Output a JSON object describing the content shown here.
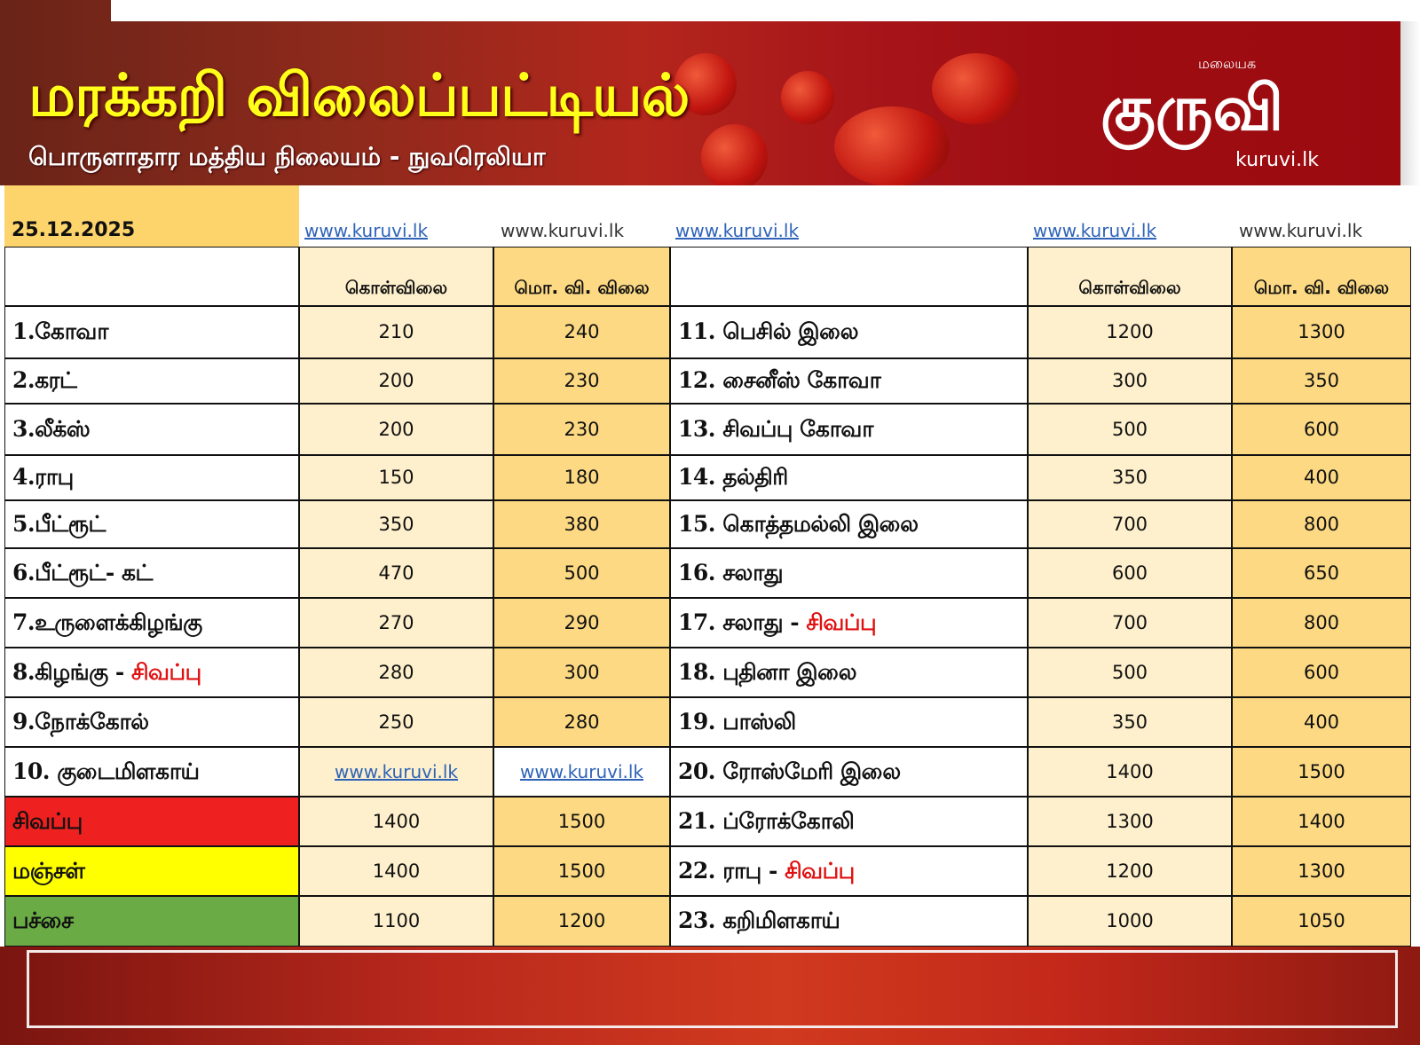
{
  "header": {
    "title": "மரக்கறி விலைப்பட்டியல்",
    "subtitle": "பொருளாதார மத்திய நிலையம் - நுவரெலியா",
    "logo": {
      "script_text": "குருவி",
      "small_text": "மலையக",
      "url": "kuruvi.lk"
    }
  },
  "table": {
    "date": "25.12.2025",
    "watermark": "www.kuruvi.lk",
    "col_wholesale": "கொள்விலை",
    "col_retail": "மொ. வி. விலை",
    "left_rows": [
      {
        "name": "1.கோவா",
        "wholesale": "210",
        "retail": "240"
      },
      {
        "name": "2.கரட்",
        "wholesale": "200",
        "retail": "230"
      },
      {
        "name": "3.லீக்ஸ்",
        "wholesale": "200",
        "retail": "230"
      },
      {
        "name": "4.ராபு",
        "wholesale": "150",
        "retail": "180"
      },
      {
        "name": "5.பீட்ரூட்",
        "wholesale": "350",
        "retail": "380"
      },
      {
        "name": "6.பீட்ரூட்- கட்",
        "wholesale": "470",
        "retail": "500"
      },
      {
        "name": "7.உருளைக்கிழங்கு",
        "wholesale": "270",
        "retail": "290"
      },
      {
        "name": "8.கிழங்கு - ",
        "name_red": "சிவப்பு",
        "wholesale": "280",
        "retail": "300"
      },
      {
        "name": "9.நோக்கோல்",
        "wholesale": "250",
        "retail": "280"
      },
      {
        "name": "10. குடைமிளகாய்",
        "wholesale": "www.kuruvi.lk",
        "retail": "www.kuruvi.lk"
      },
      {
        "name": "சிவப்பு",
        "wholesale": "1400",
        "retail": "1500",
        "color": "#ee2020"
      },
      {
        "name": "மஞ்சள்",
        "wholesale": "1400",
        "retail": "1500",
        "color": "#ffff00"
      },
      {
        "name": "பச்சை",
        "wholesale": "1100",
        "retail": "1200",
        "color": "#6aab46"
      }
    ],
    "right_rows": [
      {
        "name": "11. பெசில் இலை",
        "wholesale": "1200",
        "retail": "1300"
      },
      {
        "name": "12. சைனீஸ் கோவா",
        "wholesale": "300",
        "retail": "350"
      },
      {
        "name": "13. சிவப்பு கோவா",
        "wholesale": "500",
        "retail": "600"
      },
      {
        "name": "14. தல்திரி",
        "wholesale": "350",
        "retail": "400"
      },
      {
        "name": "15. கொத்தமல்லி இலை",
        "wholesale": "700",
        "retail": "800"
      },
      {
        "name": "16. சலாது",
        "wholesale": "600",
        "retail": "650"
      },
      {
        "name": "17. சலாது - ",
        "name_red": "சிவப்பு",
        "wholesale": "700",
        "retail": "800"
      },
      {
        "name": "18. புதினா இலை",
        "wholesale": "500",
        "retail": "600"
      },
      {
        "name": "19. பாஸ்லி",
        "wholesale": "350",
        "retail": "400"
      },
      {
        "name": "20. ரோஸ்மேரி இலை",
        "wholesale": "1400",
        "retail": "1500"
      },
      {
        "name": "21. ப்ரோக்கோலி",
        "wholesale": "1300",
        "retail": "1400"
      },
      {
        "name": "22. ராபு - ",
        "name_red": "சிவப்பு",
        "wholesale": "1200",
        "retail": "1300"
      },
      {
        "name": "23. கறிமிளகாய்",
        "wholesale": "1000",
        "retail": "1050"
      }
    ]
  }
}
